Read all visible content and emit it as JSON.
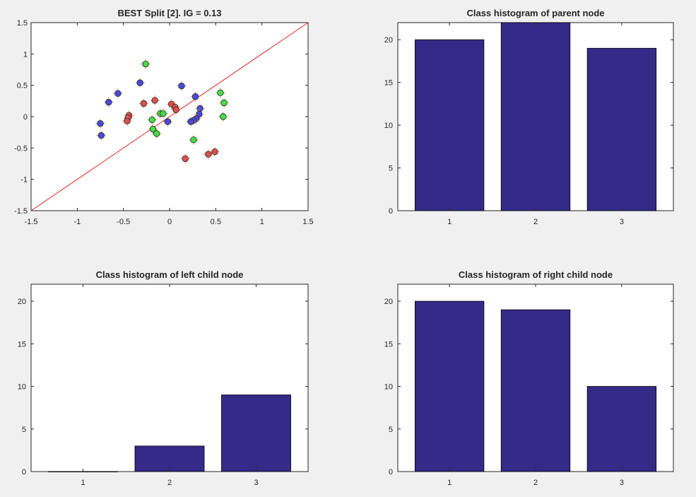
{
  "figure": {
    "background_color": "#f0f0f0",
    "bar_color": "#352a87",
    "class_colors": {
      "1": "#4b4bdc",
      "2": "#dc5050",
      "3": "#46dc46"
    }
  },
  "chart_data": [
    {
      "type": "scatter",
      "title": "BEST Split [2]. IG = 0.13",
      "xlim": [
        -1.5,
        1.5
      ],
      "ylim": [
        -1.5,
        1.5
      ],
      "xticks": [
        "-1.5",
        "-1",
        "-0.5",
        "0",
        "0.5",
        "1",
        "1.5"
      ],
      "yticks": [
        "-1.5",
        "-1",
        "-0.5",
        "0",
        "0.5",
        "1",
        "1.5"
      ],
      "grid": false,
      "series": [
        {
          "class": "1",
          "color": "#4b4bdc",
          "points": [
            [
              -0.56,
              0.37
            ],
            [
              -0.66,
              0.23
            ],
            [
              -0.75,
              -0.11
            ],
            [
              -0.74,
              -0.3
            ],
            [
              -0.32,
              0.54
            ],
            [
              0.13,
              0.49
            ],
            [
              0.28,
              0.32
            ],
            [
              0.33,
              0.13
            ],
            [
              0.32,
              0.04
            ],
            [
              0.29,
              -0.03
            ],
            [
              0.26,
              -0.06
            ],
            [
              0.23,
              -0.08
            ],
            [
              -0.02,
              -0.08
            ]
          ]
        },
        {
          "class": "2",
          "color": "#dc5050",
          "points": [
            [
              -0.28,
              0.21
            ],
            [
              -0.16,
              0.26
            ],
            [
              0.02,
              0.2
            ],
            [
              0.06,
              0.15
            ],
            [
              0.07,
              0.11
            ],
            [
              -0.44,
              0.02
            ],
            [
              -0.45,
              -0.02
            ],
            [
              -0.46,
              -0.07
            ],
            [
              0.49,
              -0.56
            ],
            [
              0.42,
              -0.6
            ],
            [
              0.17,
              -0.67
            ]
          ]
        },
        {
          "class": "3",
          "color": "#46dc46",
          "points": [
            [
              -0.26,
              0.84
            ],
            [
              0.55,
              0.38
            ],
            [
              0.59,
              0.22
            ],
            [
              0.58,
              0.0
            ],
            [
              -0.1,
              0.05
            ],
            [
              -0.07,
              0.05
            ],
            [
              -0.19,
              -0.05
            ],
            [
              -0.18,
              -0.2
            ],
            [
              -0.14,
              -0.27
            ],
            [
              0.26,
              -0.37
            ]
          ]
        }
      ],
      "split_line": {
        "color": "#e02020",
        "x": [
          -1.5,
          1.5
        ],
        "y": [
          -1.5,
          1.5
        ]
      }
    },
    {
      "type": "bar",
      "title": "Class histogram of parent node",
      "categories": [
        "1",
        "2",
        "3"
      ],
      "values": [
        20,
        22,
        19
      ],
      "ylim": [
        0,
        22
      ],
      "yticks": [
        "0",
        "5",
        "10",
        "15",
        "20"
      ]
    },
    {
      "type": "bar",
      "title": "Class histogram of left child node",
      "categories": [
        "1",
        "2",
        "3"
      ],
      "values": [
        0,
        3,
        9
      ],
      "ylim": [
        0,
        22
      ],
      "yticks": [
        "0",
        "5",
        "10",
        "15",
        "20"
      ]
    },
    {
      "type": "bar",
      "title": "Class histogram of right child node",
      "categories": [
        "1",
        "2",
        "3"
      ],
      "values": [
        20,
        19,
        10
      ],
      "ylim": [
        0,
        22
      ],
      "yticks": [
        "0",
        "5",
        "10",
        "15",
        "20"
      ]
    }
  ]
}
